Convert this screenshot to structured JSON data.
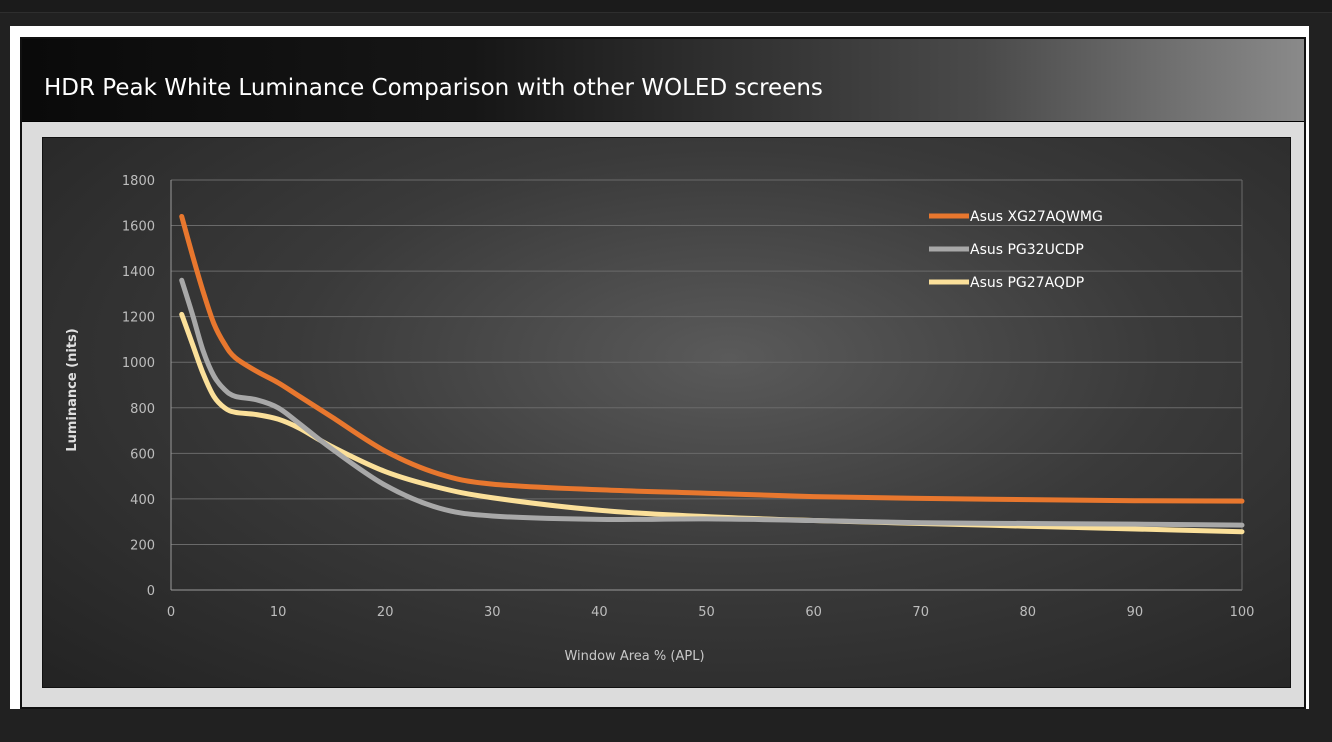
{
  "chart_data": {
    "type": "line",
    "title": "HDR Peak White Luminance Comparison with other WOLED screens",
    "xlabel": "Window Area % (APL)",
    "ylabel": "Luminance (nits)",
    "xlim": [
      0,
      100
    ],
    "ylim": [
      0,
      1800
    ],
    "x_ticks": [
      "0",
      "10",
      "20",
      "30",
      "40",
      "50",
      "60",
      "70",
      "80",
      "90",
      "100"
    ],
    "y_ticks": [
      "0",
      "200",
      "400",
      "600",
      "800",
      "1000",
      "1200",
      "1400",
      "1600",
      "1800"
    ],
    "x_tick_values": [
      0,
      10,
      20,
      30,
      40,
      50,
      60,
      70,
      80,
      90,
      100
    ],
    "y_tick_values": [
      0,
      200,
      400,
      600,
      800,
      1000,
      1200,
      1400,
      1600,
      1800
    ],
    "grid": true,
    "legend_position": "top-right",
    "series": [
      {
        "name": "Asus XG27AQWMG",
        "color": "#e8772e",
        "x": [
          1,
          2,
          3,
          4,
          5,
          6,
          8,
          10,
          12,
          15,
          20,
          25,
          30,
          40,
          50,
          60,
          70,
          80,
          90,
          100
        ],
        "values": [
          1640,
          1470,
          1310,
          1170,
          1080,
          1020,
          960,
          910,
          850,
          760,
          610,
          510,
          465,
          440,
          425,
          410,
          402,
          397,
          392,
          390
        ]
      },
      {
        "name": "Asus PG32UCDP",
        "color": "#a8a8a8",
        "x": [
          1,
          2,
          3,
          4,
          5,
          6,
          8,
          10,
          12,
          15,
          20,
          25,
          30,
          40,
          50,
          60,
          70,
          80,
          90,
          100
        ],
        "values": [
          1360,
          1210,
          1050,
          940,
          880,
          850,
          835,
          800,
          730,
          620,
          460,
          360,
          325,
          310,
          312,
          305,
          295,
          292,
          289,
          285
        ]
      },
      {
        "name": "Asus PG27AQDP",
        "color": "#fbe09a",
        "x": [
          1,
          2,
          3,
          4,
          5,
          6,
          8,
          10,
          12,
          15,
          20,
          25,
          30,
          40,
          50,
          60,
          70,
          80,
          90,
          100
        ],
        "values": [
          1210,
          1080,
          950,
          850,
          800,
          780,
          770,
          750,
          710,
          630,
          520,
          450,
          405,
          350,
          322,
          305,
          292,
          280,
          268,
          256
        ]
      }
    ]
  }
}
